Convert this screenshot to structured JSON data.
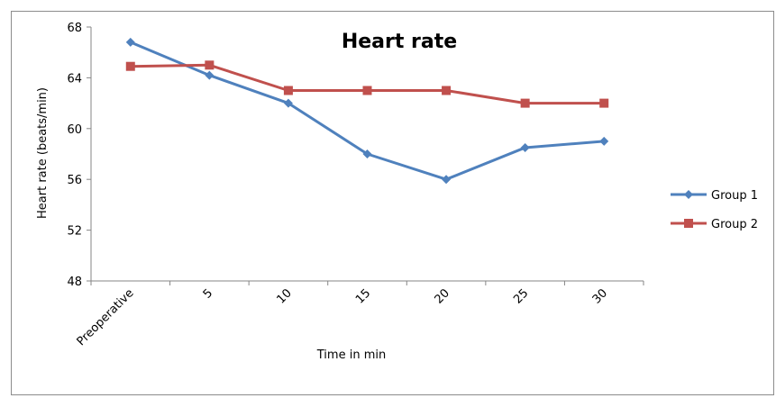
{
  "chart_data": {
    "type": "line",
    "title": "Heart rate",
    "xlabel": "Time in min",
    "ylabel": "Heart rate (beats/min)",
    "categories": [
      "Preoperative",
      "5",
      "10",
      "15",
      "20",
      "25",
      "30"
    ],
    "ylim": [
      48,
      68
    ],
    "yticks": [
      48,
      52,
      56,
      60,
      64,
      68
    ],
    "grid": false,
    "legend_position": "right",
    "series": [
      {
        "name": "Group 1",
        "values": [
          66.8,
          64.2,
          62.0,
          58.0,
          56.0,
          58.5,
          59.0
        ],
        "color": "#4f81bd",
        "marker": "diamond"
      },
      {
        "name": "Group 2",
        "values": [
          64.9,
          65.0,
          63.0,
          63.0,
          63.0,
          62.0,
          62.0
        ],
        "color": "#c0504d",
        "marker": "square"
      }
    ]
  }
}
